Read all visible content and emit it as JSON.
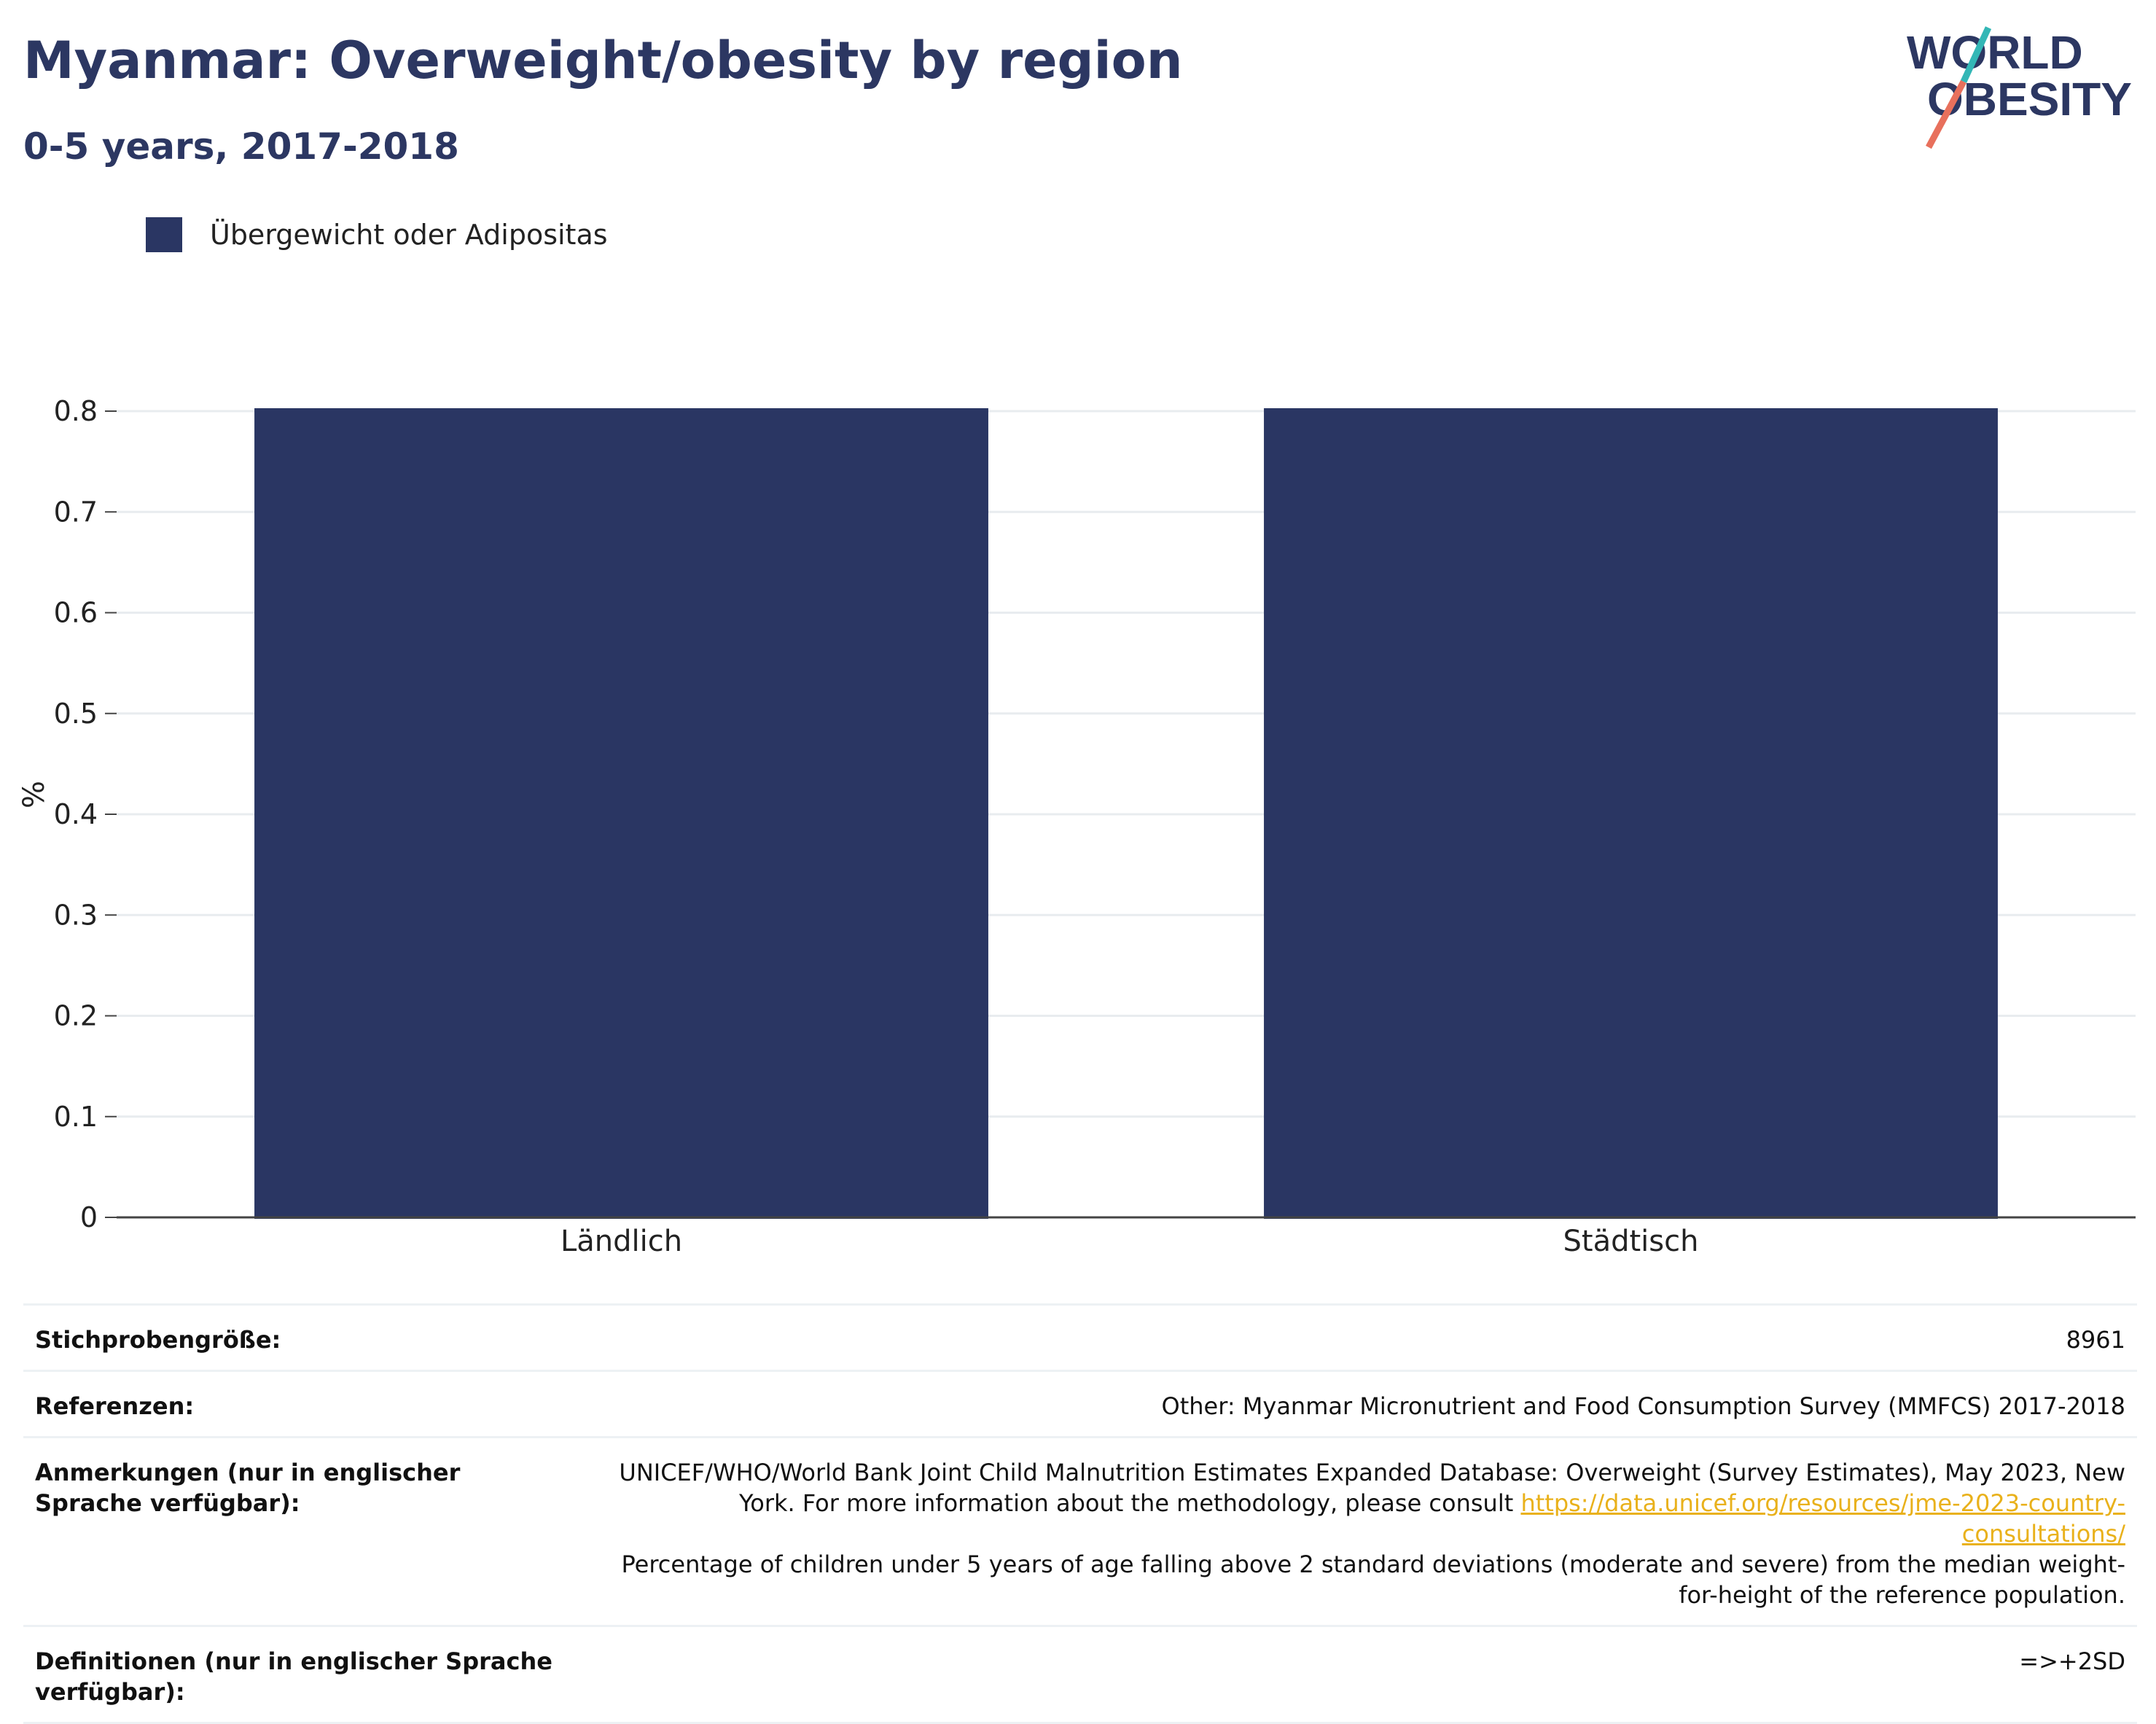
{
  "header": {
    "title": "Myanmar: Overweight/obesity by region",
    "subtitle": "0-5 years, 2017-2018"
  },
  "logo": {
    "line1": "WORLD",
    "line2": "OBESITY",
    "colors": {
      "text": "#2c3762",
      "slash_top": "#33b7b6",
      "slash_bottom": "#e8705c"
    }
  },
  "legend": {
    "items": [
      {
        "label": "Übergewicht oder Adipositas",
        "color": "#2a3663"
      }
    ]
  },
  "chart_data": {
    "type": "bar",
    "categories": [
      "Ländlich",
      "Städtisch"
    ],
    "series": [
      {
        "name": "Übergewicht oder Adipositas",
        "values": [
          0.8,
          0.8
        ],
        "color": "#2a3663"
      }
    ],
    "title": "Myanmar: Overweight/obesity by region",
    "subtitle": "0-5 years, 2017-2018",
    "xlabel": "",
    "ylabel": "%",
    "ylim": [
      0,
      0.8
    ],
    "yticks": [
      "0",
      "0.1",
      "0.2",
      "0.3",
      "0.4",
      "0.5",
      "0.6",
      "0.7",
      "0.8"
    ],
    "grid": true,
    "legend_position": "top-left"
  },
  "info": {
    "sample_label": "Stichprobengröße:",
    "sample_value": "8961",
    "refs_label": "Referenzen:",
    "refs_value": "Other: Myanmar Micronutrient and Food Consumption Survey (MMFCS) 2017-2018",
    "notes_label": "Anmerkungen (nur in englischer Sprache verfügbar):",
    "notes_part1": "UNICEF/WHO/World Bank Joint Child Malnutrition Estimates Expanded Database: Overweight (Survey Estimates), May 2023, New York. For more information about the methodology, please consult",
    "notes_link": "https://data.unicef.org/resources/jme-2023-country-consultations/",
    "notes_part2": "Percentage of children under 5 years of age falling above 2 standard deviations (moderate and severe) from the median weight-for-height of the reference population.",
    "defs_label": "Definitionen (nur in englischer Sprache verfügbar):",
    "defs_value": "=>+2SD"
  }
}
